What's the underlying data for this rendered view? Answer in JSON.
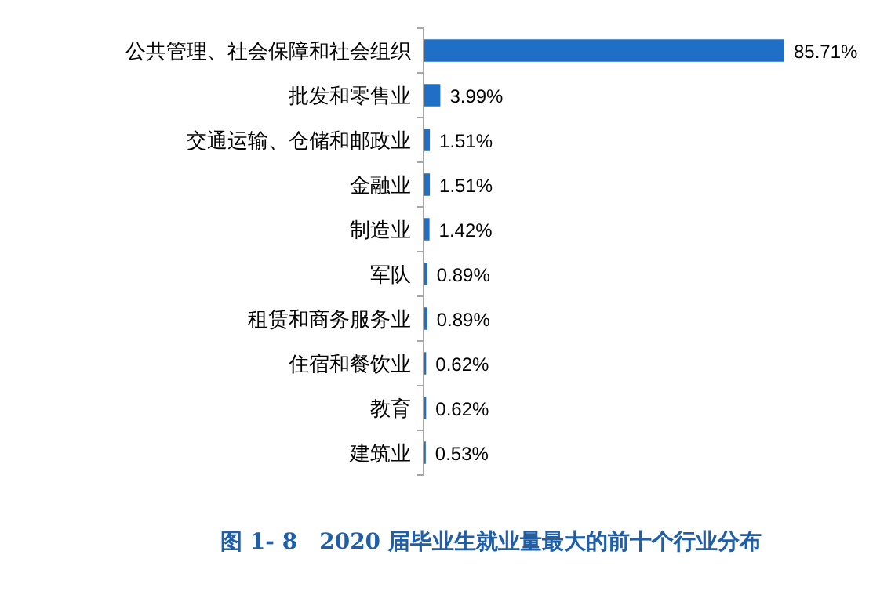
{
  "chart_data": {
    "type": "bar",
    "orientation": "horizontal",
    "title": "图 1- 8　2020 届毕业生就业量最大的前十个行业分布",
    "categories": [
      "公共管理、社会保障和社会组织",
      "批发和零售业",
      "交通运输、仓储和邮政业",
      "金融业",
      "制造业",
      "军队",
      "租赁和商务服务业",
      "住宿和餐饮业",
      "教育",
      "建筑业"
    ],
    "values": [
      85.71,
      3.99,
      1.51,
      1.51,
      1.42,
      0.89,
      0.89,
      0.62,
      0.62,
      0.53
    ],
    "value_labels": [
      "85.71%",
      "3.99%",
      "1.51%",
      "1.51%",
      "1.42%",
      "0.89%",
      "0.89%",
      "0.62%",
      "0.62%",
      "0.53%"
    ],
    "color": "#1f6fc6"
  }
}
